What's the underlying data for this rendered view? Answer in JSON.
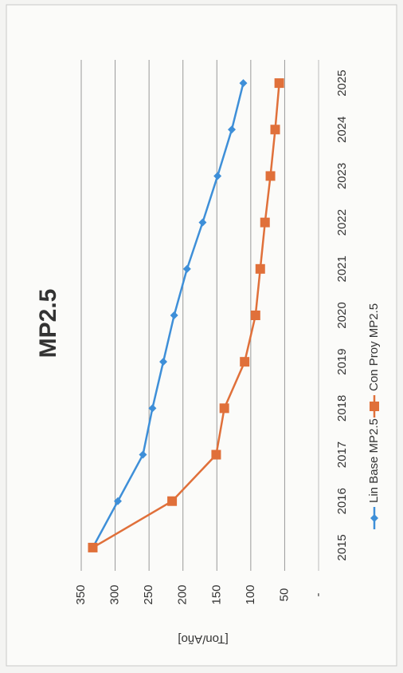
{
  "chart_data": {
    "type": "line",
    "title": "MP2.5",
    "y_label": "[Ton/Año]",
    "categories": [
      "2015",
      "2016",
      "2017",
      "2018",
      "2019",
      "2020",
      "2021",
      "2022",
      "2023",
      "2024",
      "2025"
    ],
    "series": [
      {
        "name": "Lin Base MP2.5",
        "color": "#3e8fd8",
        "marker": "diamond",
        "values": [
          333,
          296,
          259,
          245,
          229,
          213,
          194,
          171,
          149,
          128,
          111
        ]
      },
      {
        "name": "Con Proy MP2.5",
        "color": "#e0703a",
        "marker": "square",
        "values": [
          333,
          216,
          151,
          139,
          109,
          93,
          86,
          79,
          71,
          64,
          58
        ]
      }
    ],
    "ylim": [
      0,
      350
    ],
    "yticks": [
      {
        "value": 0,
        "label": "-"
      },
      50,
      100,
      150,
      200,
      250,
      300,
      350
    ],
    "grid": true,
    "legend": "bottom"
  }
}
